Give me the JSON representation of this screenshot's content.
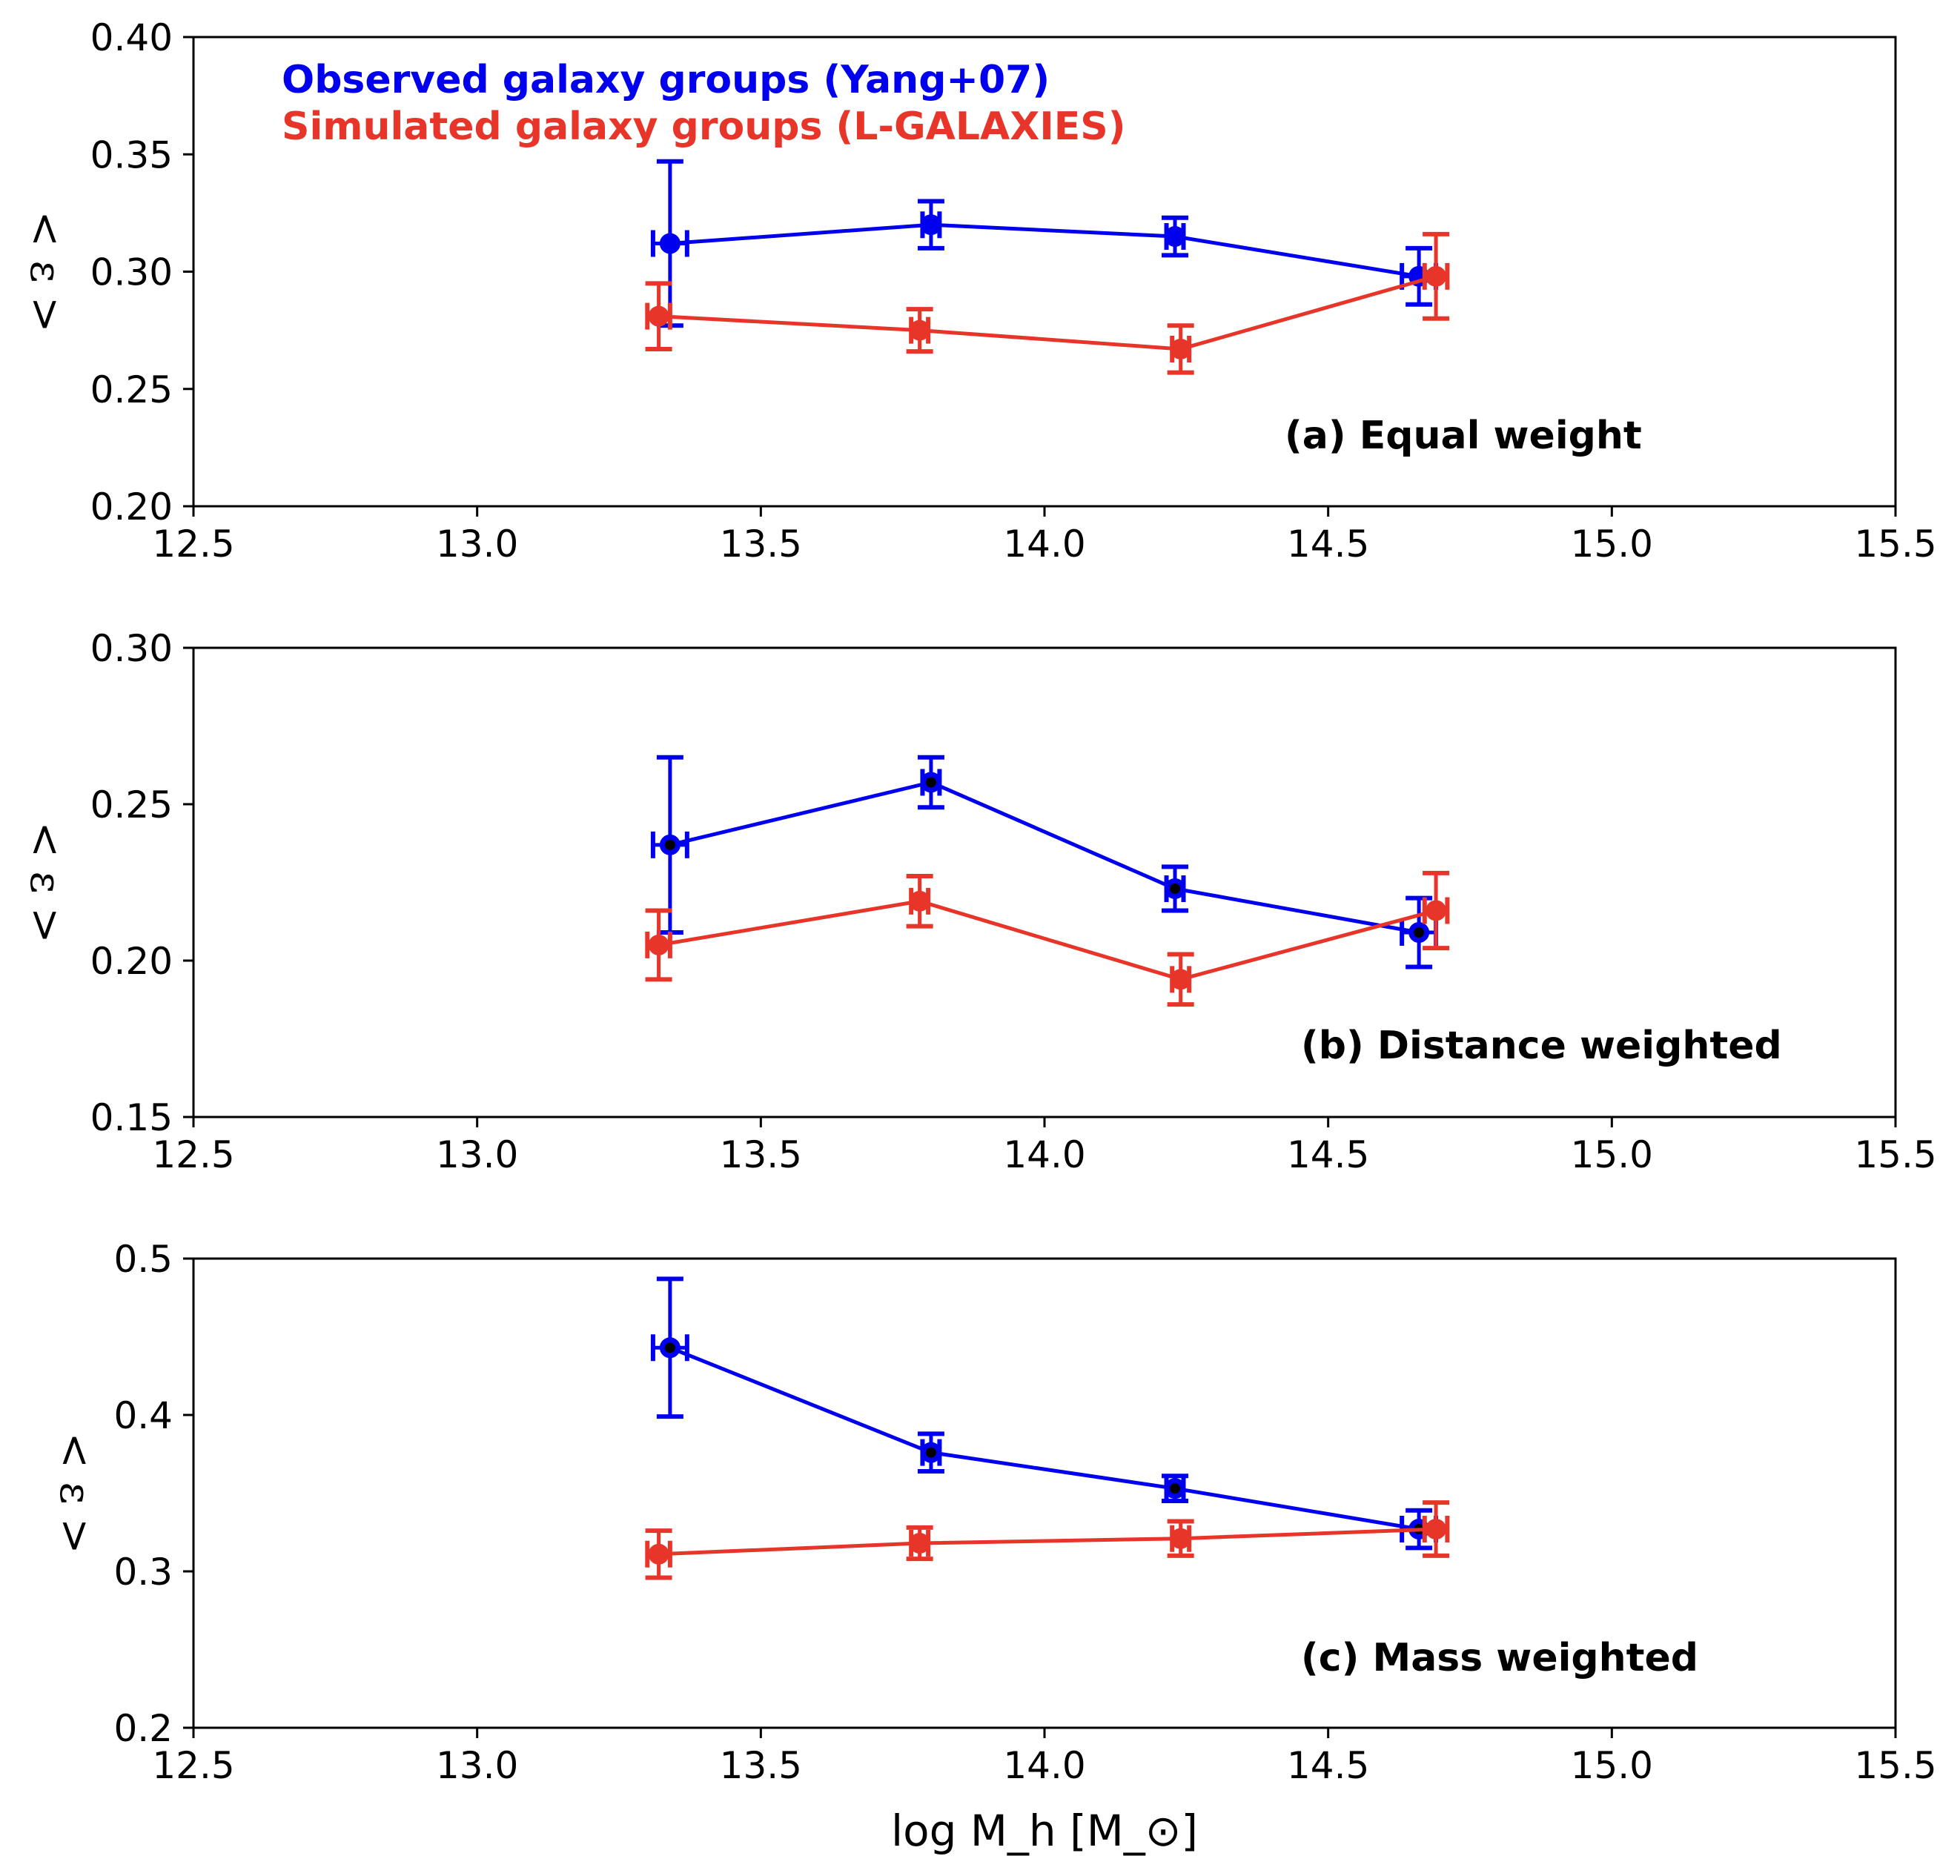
{
  "chart_data": [
    {
      "type": "line",
      "panel": "a",
      "title": "(a) Equal weight",
      "xlabel": "log M_h [M_⊙]",
      "ylabel": "< ε >",
      "xlim": [
        12.5,
        15.5
      ],
      "ylim": [
        0.2,
        0.4
      ],
      "xticks": [
        "12.5",
        "13.0",
        "13.5",
        "14.0",
        "14.5",
        "15.0",
        "15.5"
      ],
      "yticks": [
        "0.20",
        "0.25",
        "0.30",
        "0.35",
        "0.40"
      ],
      "legend": [
        "Observed galaxy groups (Yang+07)",
        "Simulated galaxy groups (L-GALAXIES)"
      ],
      "legend_position": "top-left",
      "grid": false,
      "series": [
        {
          "name": "Observed galaxy groups (Yang+07)",
          "color": "#0000ee",
          "inner_dot": false,
          "x": [
            13.34,
            13.8,
            14.23,
            14.66
          ],
          "y": [
            0.312,
            0.32,
            0.315,
            0.298
          ],
          "yerr": [
            0.035,
            0.01,
            0.008,
            0.012
          ],
          "xerr": [
            0.03,
            0.015,
            0.015,
            0.03
          ]
        },
        {
          "name": "Simulated galaxy groups (L-GALAXIES)",
          "color": "#e8352a",
          "inner_dot": false,
          "x": [
            13.32,
            13.78,
            14.24,
            14.69
          ],
          "y": [
            0.281,
            0.275,
            0.267,
            0.298
          ],
          "yerr": [
            0.014,
            0.009,
            0.01,
            0.018
          ],
          "xerr": [
            0.02,
            0.015,
            0.015,
            0.02
          ]
        }
      ]
    },
    {
      "type": "line",
      "panel": "b",
      "title": "(b) Distance weighted",
      "xlabel": "log M_h [M_⊙]",
      "ylabel": "< ε >",
      "xlim": [
        12.5,
        15.5
      ],
      "ylim": [
        0.15,
        0.3
      ],
      "xticks": [
        "12.5",
        "13.0",
        "13.5",
        "14.0",
        "14.5",
        "15.0",
        "15.5"
      ],
      "yticks": [
        "0.15",
        "0.20",
        "0.25",
        "0.30"
      ],
      "grid": false,
      "series": [
        {
          "name": "Observed galaxy groups (Yang+07)",
          "color": "#0000ee",
          "inner_dot": true,
          "x": [
            13.34,
            13.8,
            14.23,
            14.66
          ],
          "y": [
            0.237,
            0.257,
            0.223,
            0.209
          ],
          "yerr": [
            0.028,
            0.008,
            0.007,
            0.011
          ],
          "xerr": [
            0.03,
            0.015,
            0.015,
            0.03
          ]
        },
        {
          "name": "Simulated galaxy groups (L-GALAXIES)",
          "color": "#e8352a",
          "inner_dot": false,
          "x": [
            13.32,
            13.78,
            14.24,
            14.69
          ],
          "y": [
            0.205,
            0.219,
            0.194,
            0.216
          ],
          "yerr": [
            0.011,
            0.008,
            0.008,
            0.012
          ],
          "xerr": [
            0.02,
            0.015,
            0.015,
            0.02
          ]
        }
      ]
    },
    {
      "type": "line",
      "panel": "c",
      "title": "(c) Mass weighted",
      "xlabel": "log M_h [M_⊙]",
      "ylabel": "< ε >",
      "xlim": [
        12.5,
        15.5
      ],
      "ylim": [
        0.2,
        0.5
      ],
      "xticks": [
        "12.5",
        "13.0",
        "13.5",
        "14.0",
        "14.5",
        "15.0",
        "15.5"
      ],
      "yticks": [
        "0.2",
        "0.3",
        "0.4",
        "0.5"
      ],
      "grid": false,
      "series": [
        {
          "name": "Observed galaxy groups (Yang+07)",
          "color": "#0000ee",
          "inner_dot": true,
          "x": [
            13.34,
            13.8,
            14.23,
            14.66
          ],
          "y": [
            0.443,
            0.376,
            0.353,
            0.327
          ],
          "yerr": [
            0.044,
            0.012,
            0.008,
            0.012
          ],
          "xerr": [
            0.03,
            0.015,
            0.015,
            0.03
          ]
        },
        {
          "name": "Simulated galaxy groups (L-GALAXIES)",
          "color": "#e8352a",
          "inner_dot": false,
          "x": [
            13.32,
            13.78,
            14.24,
            14.69
          ],
          "y": [
            0.311,
            0.318,
            0.321,
            0.327
          ],
          "yerr": [
            0.015,
            0.01,
            0.011,
            0.017
          ],
          "xerr": [
            0.02,
            0.015,
            0.015,
            0.02
          ]
        }
      ]
    }
  ]
}
